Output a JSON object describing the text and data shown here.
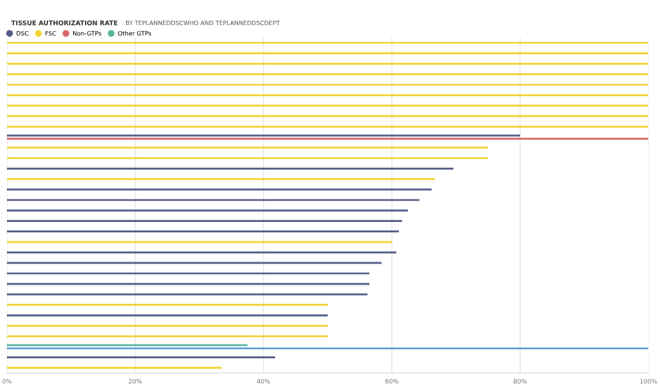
{
  "chart_data": {
    "type": "bar",
    "orientation": "horizontal",
    "title": "TISSUE AUTHORIZATION RATE",
    "subtitle": "BY TEPLANNEDDSCWHO AND TEPLANNEDDSCDEPT",
    "categories": [
      null,
      null,
      null,
      null,
      null,
      null,
      null,
      null,
      null,
      null,
      null,
      null,
      null,
      null,
      null,
      null,
      null,
      null,
      null,
      null,
      null,
      null,
      null,
      null,
      null,
      null,
      null,
      null,
      null,
      null,
      null,
      null
    ],
    "series": [
      {
        "name": "DSC",
        "color": "#555d8a",
        "values": [
          null,
          null,
          null,
          null,
          null,
          null,
          null,
          null,
          null,
          80,
          null,
          null,
          69.6,
          null,
          66.2,
          64.3,
          62.5,
          61.6,
          61.1,
          null,
          60.7,
          58.4,
          56.5,
          56.5,
          56.2,
          null,
          50,
          null,
          null,
          null,
          41.8,
          null
        ]
      },
      {
        "name": "FSC",
        "color": "#f2d335",
        "values": [
          100,
          100,
          100,
          100,
          100,
          100,
          100,
          100,
          100,
          null,
          75,
          75,
          null,
          66.7,
          null,
          null,
          null,
          null,
          null,
          60,
          null,
          null,
          null,
          null,
          null,
          50,
          null,
          50,
          50,
          null,
          null,
          33.5
        ]
      },
      {
        "name": "Non-GTPs",
        "color": "#d9686b",
        "values": [
          null,
          null,
          null,
          null,
          null,
          null,
          null,
          null,
          null,
          100,
          null,
          null,
          null,
          null,
          null,
          null,
          null,
          null,
          null,
          null,
          null,
          null,
          null,
          null,
          null,
          null,
          null,
          null,
          null,
          null,
          null,
          null
        ]
      },
      {
        "name": "Other GTPs",
        "color": "#5bb5a0",
        "values": [
          null,
          null,
          null,
          null,
          null,
          null,
          null,
          null,
          null,
          null,
          null,
          null,
          null,
          null,
          null,
          null,
          null,
          null,
          null,
          null,
          null,
          null,
          null,
          null,
          null,
          null,
          null,
          null,
          null,
          37.5,
          null,
          null
        ]
      },
      {
        "color": "#5b9bd5",
        "values": [
          null,
          null,
          null,
          null,
          null,
          null,
          null,
          null,
          null,
          null,
          null,
          null,
          null,
          null,
          null,
          null,
          null,
          null,
          null,
          null,
          null,
          null,
          null,
          null,
          null,
          null,
          null,
          null,
          null,
          100,
          null,
          null
        ]
      }
    ],
    "xlim": [
      0,
      100
    ],
    "xticks": [
      {
        "value": 0,
        "label": "0%"
      },
      {
        "value": 20,
        "label": "20%"
      },
      {
        "value": 40,
        "label": "40%"
      },
      {
        "value": 60,
        "label": "60%"
      },
      {
        "value": 80,
        "label": "80%"
      },
      {
        "value": 100,
        "label": "100%"
      }
    ],
    "grid": "x",
    "legend": "top left",
    "tick_labels": "x"
  }
}
